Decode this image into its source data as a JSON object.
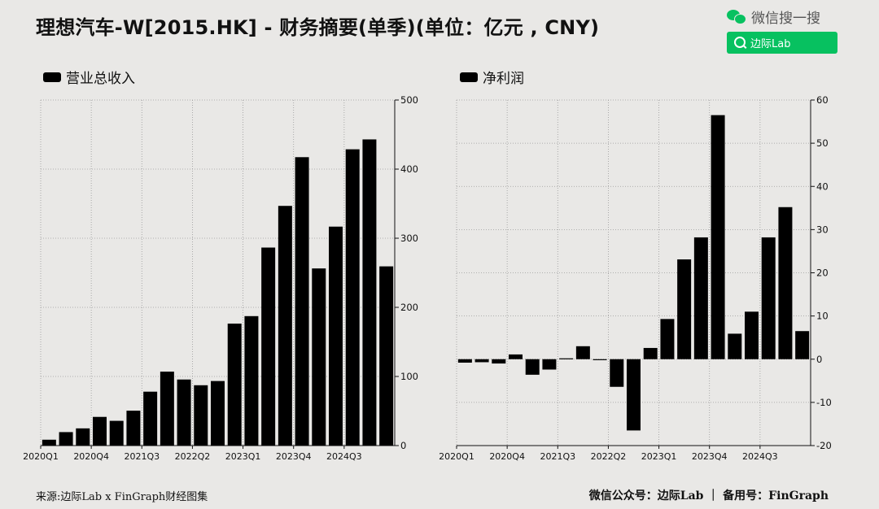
{
  "title": "理想汽车-W[2015.HK] - 财务摘要(单季)(单位：亿元 , CNY)",
  "wechat": {
    "label": "微信搜一搜",
    "search_text": "边际Lab",
    "brand_color": "#07c160"
  },
  "footer": {
    "source": "来源:边际Lab x FinGraph财经图集",
    "account": "微信公众号：边际Lab ｜ 备用号：FinGraph"
  },
  "chart_data": [
    {
      "type": "bar",
      "legend": "营业总收入",
      "categories": [
        "2020Q1",
        "2020Q2",
        "2020Q3",
        "2020Q4",
        "2021Q1",
        "2021Q2",
        "2021Q3",
        "2021Q4",
        "2022Q1",
        "2022Q2",
        "2022Q3",
        "2022Q4",
        "2023Q1",
        "2023Q2",
        "2023Q3",
        "2023Q4",
        "2024Q1",
        "2024Q2",
        "2024Q3",
        "2024Q4",
        "2025Q1"
      ],
      "values": [
        8.5,
        19.5,
        24.9,
        41.5,
        35.8,
        50.5,
        78.0,
        107.0,
        95.6,
        87.3,
        93.4,
        176.5,
        187.3,
        286.5,
        346.8,
        417.3,
        256.3,
        316.8,
        428.7,
        443.0,
        259.3
      ],
      "tick_labels": [
        "2020Q1",
        "2020Q4",
        "2021Q3",
        "2022Q2",
        "2023Q1",
        "2023Q4",
        "2024Q3"
      ],
      "yticks": [
        0,
        100,
        200,
        300,
        400,
        500
      ],
      "ylim": [
        0,
        500
      ],
      "grid": true
    },
    {
      "type": "bar",
      "legend": "净利润",
      "categories": [
        "2020Q1",
        "2020Q2",
        "2020Q3",
        "2020Q4",
        "2021Q1",
        "2021Q2",
        "2021Q3",
        "2021Q4",
        "2022Q1",
        "2022Q2",
        "2022Q3",
        "2022Q4",
        "2023Q1",
        "2023Q2",
        "2023Q3",
        "2023Q4",
        "2024Q1",
        "2024Q2",
        "2024Q3",
        "2024Q4",
        "2025Q1"
      ],
      "values": [
        -0.8,
        -0.7,
        -1.0,
        1.1,
        -3.6,
        -2.4,
        0.2,
        3.0,
        -0.1,
        -6.4,
        -16.5,
        2.6,
        9.3,
        23.1,
        28.2,
        56.5,
        5.9,
        11.0,
        28.2,
        35.2,
        6.5
      ],
      "tick_labels": [
        "2020Q1",
        "2020Q4",
        "2021Q3",
        "2022Q2",
        "2023Q1",
        "2023Q4",
        "2024Q3"
      ],
      "yticks": [
        -20,
        -10,
        0,
        10,
        20,
        30,
        40,
        50,
        60
      ],
      "ylim": [
        -20,
        60
      ],
      "grid": true
    }
  ]
}
